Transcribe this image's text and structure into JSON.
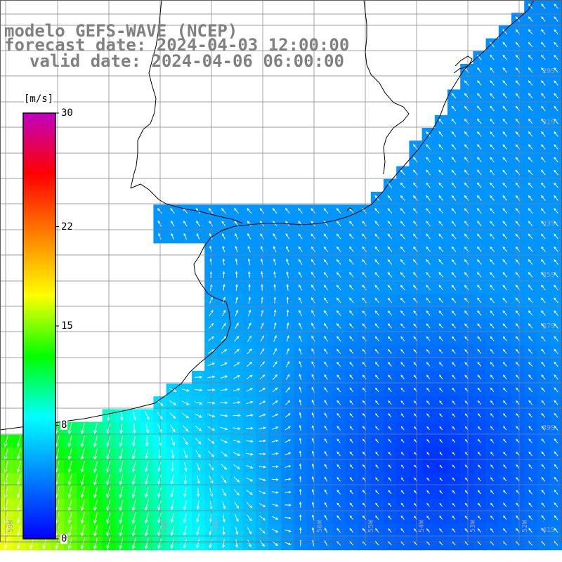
{
  "title": {
    "line1": "modelo GEFS-WAVE (NCEP)",
    "line2": "forecast date: 2024-04-03 12:00:00",
    "line3": "valid date: 2024-04-06 06:00:00"
  },
  "colorbar": {
    "unit": "[m/s]",
    "min": 0,
    "max": 30,
    "ticks": [
      "30",
      "22",
      "15",
      "8",
      "0"
    ],
    "tick_values": [
      30,
      22,
      15,
      8,
      0
    ],
    "palette": [
      "#0000ff",
      "#0080ff",
      "#00ffff",
      "#00ff00",
      "#ffff00",
      "#ff8000",
      "#ff0000",
      "#c000c0"
    ]
  },
  "map": {
    "variable": "wind speed",
    "arrow_color": "#ffffff",
    "land_color": "#ffffff",
    "grid_color": "#808080",
    "coast_color": "#000000",
    "lat_labels": [
      "29S",
      "31S",
      "33S",
      "35S",
      "37S",
      "39S",
      "41S"
    ],
    "lon_labels": [
      "59W",
      "58W",
      "57W",
      "56W",
      "55W",
      "54W",
      "53W",
      "52W",
      "51W"
    ]
  }
}
